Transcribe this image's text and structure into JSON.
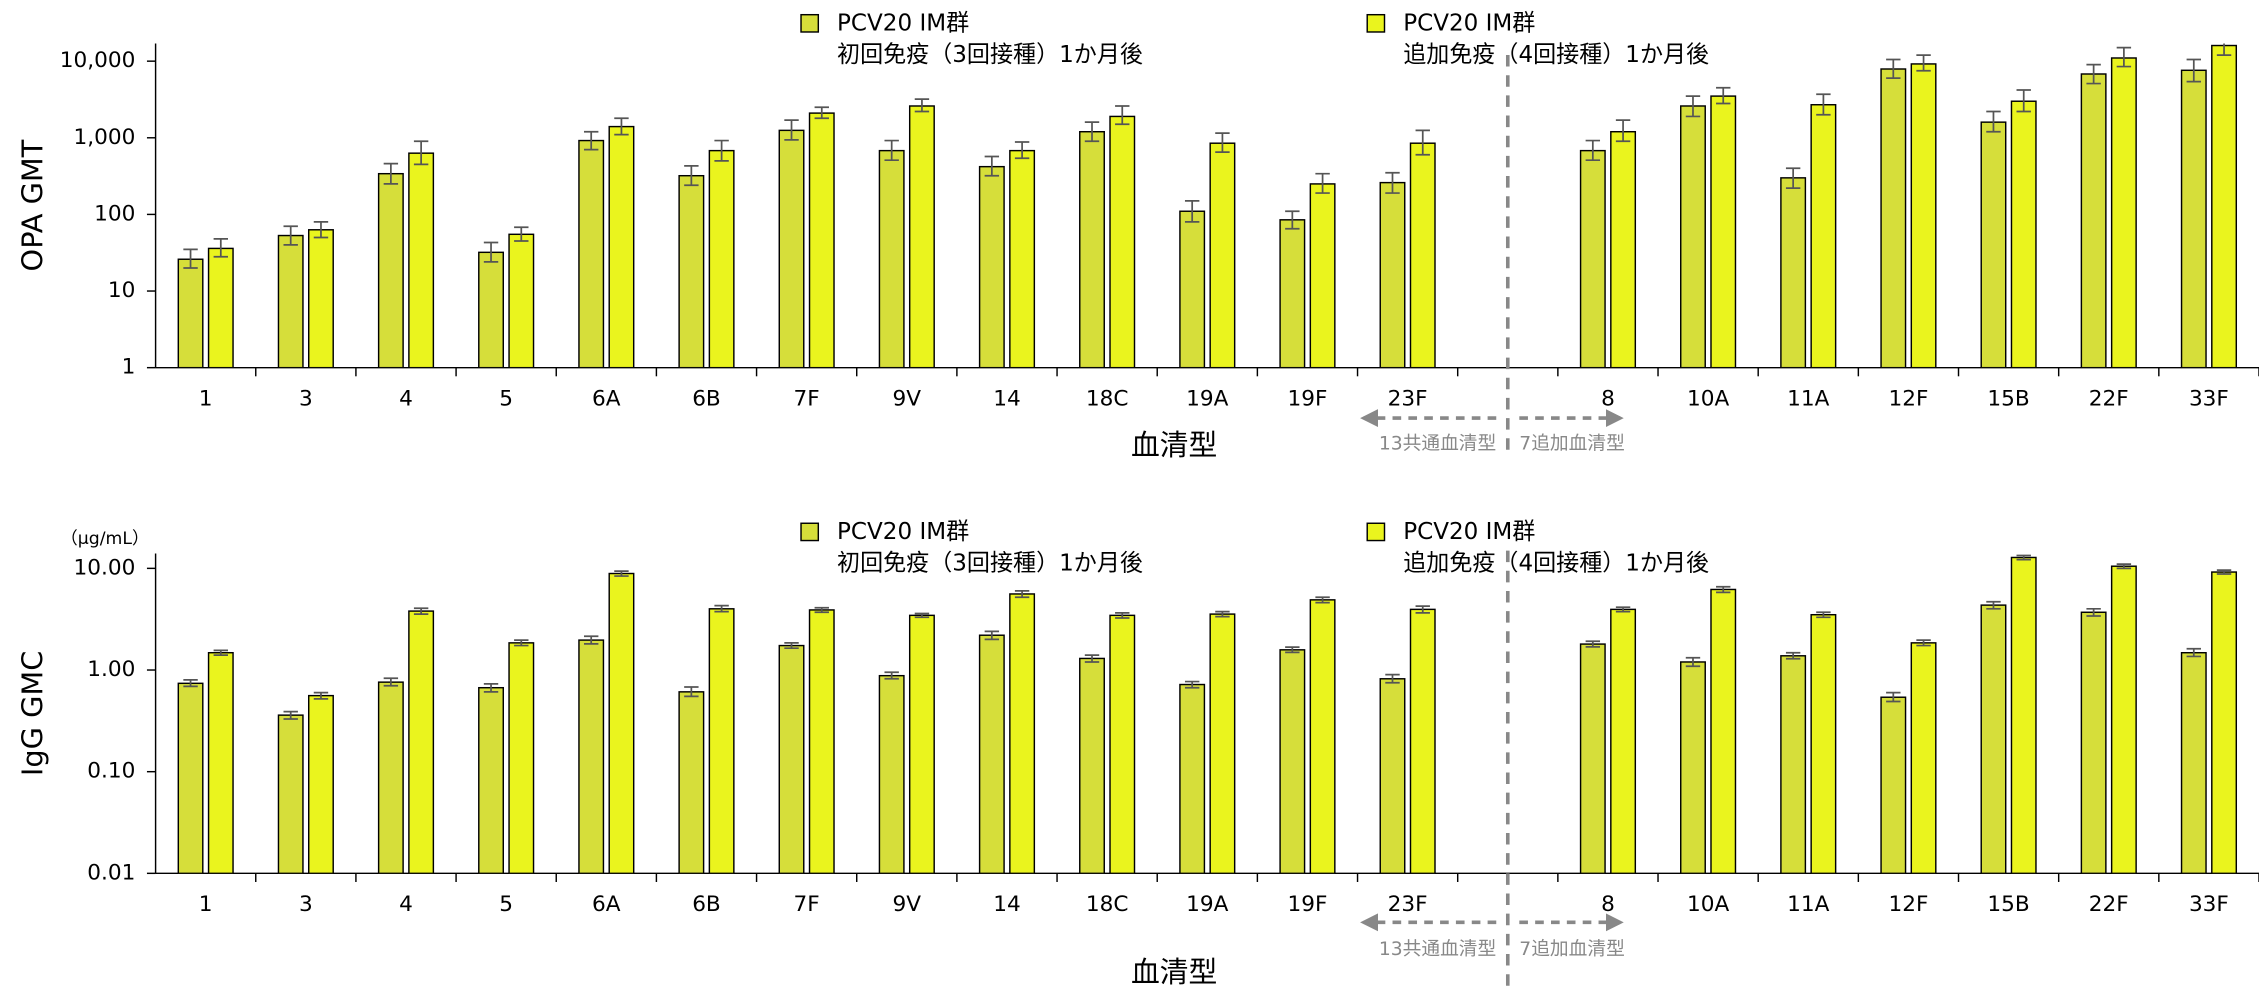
{
  "chart_data": [
    {
      "type": "bar",
      "log_scale": true,
      "ylabel": "OPA GMT",
      "xlabel": "血清型",
      "annotations": [
        "13共通血清型",
        "7追加血清型"
      ],
      "categories": [
        "1",
        "3",
        "4",
        "5",
        "6A",
        "6B",
        "7F",
        "9V",
        "14",
        "18C",
        "19A",
        "19F",
        "23F",
        null,
        "8",
        "10A",
        "11A",
        "12F",
        "15B",
        "22F",
        "33F"
      ],
      "series": [
        {
          "name": "PCV20 IM群\n初回免疫（3回接種）1か月後",
          "color": "#d6de3a",
          "values": [
            26,
            53,
            340,
            32,
            920,
            320,
            1250,
            680,
            420,
            1200,
            110,
            85,
            260,
            null,
            680,
            2600,
            300,
            7900,
            1600,
            6800,
            7600
          ],
          "ci_low": [
            20,
            40,
            250,
            24,
            700,
            240,
            940,
            510,
            320,
            900,
            80,
            65,
            190,
            null,
            510,
            1900,
            220,
            6000,
            1200,
            5100,
            5400
          ],
          "ci_high": [
            35,
            70,
            460,
            43,
            1200,
            430,
            1700,
            920,
            570,
            1600,
            150,
            110,
            350,
            null,
            920,
            3500,
            400,
            10500,
            2200,
            9000,
            10500
          ]
        },
        {
          "name": "PCV20 IM群\n追加免疫（4回接種）1か月後",
          "color": "#eaf41e",
          "values": [
            36,
            63,
            630,
            55,
            1400,
            680,
            2100,
            2600,
            680,
            1900,
            850,
            250,
            850,
            null,
            1200,
            3500,
            2700,
            9200,
            3000,
            11000,
            16000
          ],
          "ci_low": [
            28,
            50,
            450,
            45,
            1100,
            500,
            1800,
            2200,
            540,
            1500,
            650,
            190,
            600,
            null,
            900,
            2800,
            2000,
            7500,
            2200,
            8500,
            12000
          ],
          "ci_high": [
            48,
            80,
            900,
            68,
            1800,
            920,
            2500,
            3200,
            880,
            2600,
            1150,
            340,
            1250,
            null,
            1700,
            4500,
            3700,
            12000,
            4200,
            15000,
            21000
          ]
        }
      ],
      "ylim": [
        1,
        17000
      ],
      "yticks": [
        1,
        10,
        100,
        {
          "value": 1000,
          "label": "1,000"
        },
        {
          "value": 10000,
          "label": "10,000"
        }
      ]
    },
    {
      "type": "bar",
      "log_scale": true,
      "ylabel": "IgG GMC",
      "y_unit": "（μg/mL）",
      "xlabel": "血清型",
      "annotations": [
        "13共通血清型",
        "7追加血清型"
      ],
      "categories": [
        "1",
        "3",
        "4",
        "5",
        "6A",
        "6B",
        "7F",
        "9V",
        "14",
        "18C",
        "19A",
        "19F",
        "23F",
        null,
        "8",
        "10A",
        "11A",
        "12F",
        "15B",
        "22F",
        "33F"
      ],
      "series": [
        {
          "name": "PCV20 IM群\n初回免疫（3回接種）1か月後",
          "color": "#d6de3a",
          "values": [
            0.74,
            0.36,
            0.76,
            0.67,
            1.97,
            0.61,
            1.74,
            0.88,
            2.2,
            1.3,
            0.72,
            1.58,
            0.82,
            null,
            1.8,
            1.2,
            1.38,
            0.54,
            4.35,
            3.7,
            1.48
          ],
          "ci_low": [
            0.69,
            0.33,
            0.7,
            0.61,
            1.81,
            0.55,
            1.64,
            0.82,
            2.0,
            1.2,
            0.67,
            1.49,
            0.75,
            null,
            1.69,
            1.09,
            1.29,
            0.49,
            4.0,
            3.4,
            1.36
          ],
          "ci_high": [
            0.8,
            0.39,
            0.83,
            0.73,
            2.15,
            0.68,
            1.85,
            0.95,
            2.4,
            1.4,
            0.77,
            1.68,
            0.9,
            null,
            1.92,
            1.32,
            1.48,
            0.6,
            4.7,
            4.0,
            1.62
          ]
        },
        {
          "name": "PCV20 IM群\n追加免疫（4回接種）1か月後",
          "color": "#eaf41e",
          "values": [
            1.48,
            0.56,
            3.8,
            1.85,
            8.9,
            4.0,
            3.9,
            3.45,
            5.6,
            3.45,
            3.55,
            4.9,
            3.95,
            null,
            3.95,
            6.2,
            3.5,
            1.85,
            12.8,
            10.5,
            9.2
          ],
          "ci_low": [
            1.4,
            0.52,
            3.55,
            1.74,
            8.4,
            3.75,
            3.7,
            3.3,
            5.2,
            3.25,
            3.35,
            4.6,
            3.65,
            null,
            3.75,
            5.8,
            3.3,
            1.74,
            12.2,
            10.0,
            8.8
          ],
          "ci_high": [
            1.56,
            0.6,
            4.05,
            1.97,
            9.4,
            4.3,
            4.1,
            3.6,
            6.0,
            3.65,
            3.75,
            5.2,
            4.25,
            null,
            4.15,
            6.6,
            3.7,
            1.97,
            13.4,
            11.0,
            9.6
          ]
        }
      ],
      "ylim": [
        0.01,
        14
      ],
      "yticks": [
        {
          "value": 0.01,
          "label": "0.01"
        },
        {
          "value": 0.1,
          "label": "0.10"
        },
        {
          "value": 1,
          "label": "1.00"
        },
        {
          "value": 10,
          "label": "10.00"
        }
      ]
    }
  ]
}
